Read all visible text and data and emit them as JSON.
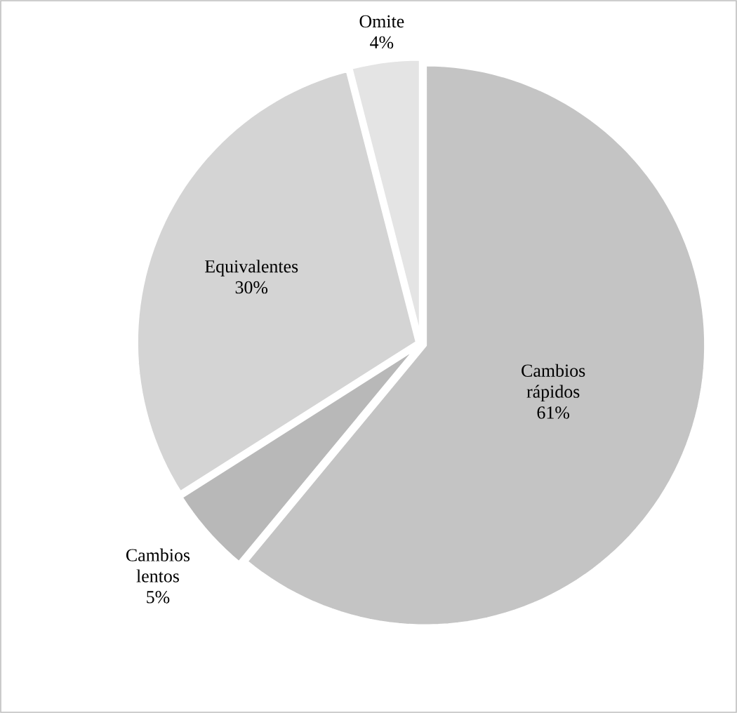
{
  "chart_data": {
    "type": "pie",
    "categories": [
      "Cambios rápidos",
      "Cambios lentos",
      "Equivalentes",
      "Omite"
    ],
    "values": [
      61,
      5,
      30,
      4
    ],
    "value_labels": [
      "61%",
      "5%",
      "30%",
      "4%"
    ],
    "colors": [
      "#c4c4c4",
      "#b8b8b8",
      "#d4d4d4",
      "#e4e4e4"
    ]
  }
}
